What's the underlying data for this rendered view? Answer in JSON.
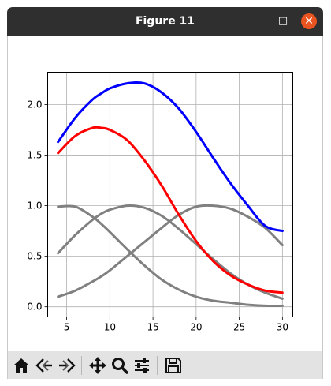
{
  "window": {
    "title": "Figure 11",
    "minimize_glyph": "–",
    "maximize_glyph": "□",
    "close_glyph": "✕",
    "close_color": "#e95420"
  },
  "toolbar": {
    "buttons": [
      {
        "name": "home",
        "icon": "home-icon"
      },
      {
        "name": "back",
        "icon": "back-arrow-icon"
      },
      {
        "name": "forward",
        "icon": "forward-arrow-icon"
      },
      {
        "name": "pan",
        "icon": "move-icon"
      },
      {
        "name": "zoom",
        "icon": "magnifier-icon"
      },
      {
        "name": "configure",
        "icon": "sliders-icon"
      },
      {
        "name": "save",
        "icon": "floppy-disk-icon"
      }
    ]
  },
  "chart_data": {
    "type": "line",
    "title": "",
    "xlabel": "",
    "ylabel": "",
    "xlim": [
      2.8,
      31.2
    ],
    "ylim": [
      -0.1,
      2.32
    ],
    "xticks": [
      5,
      10,
      15,
      20,
      25,
      30
    ],
    "yticks": [
      0.0,
      0.5,
      1.0,
      1.5,
      2.0
    ],
    "xtick_labels": [
      "5",
      "10",
      "15",
      "20",
      "25",
      "30"
    ],
    "ytick_labels": [
      "0.0",
      "0.5",
      "1.0",
      "1.5",
      "2.0"
    ],
    "grid": true,
    "legend": "none",
    "x": [
      4,
      6,
      8,
      9,
      10,
      12,
      14,
      16,
      18,
      20,
      22,
      24,
      26,
      28,
      30
    ],
    "series": [
      {
        "color": "#0000ff",
        "values": [
          1.63,
          1.87,
          2.05,
          2.11,
          2.16,
          2.21,
          2.21,
          2.12,
          1.96,
          1.73,
          1.47,
          1.22,
          1.0,
          0.8,
          0.75
        ]
      },
      {
        "color": "#ff0000",
        "values": [
          1.52,
          1.69,
          1.77,
          1.77,
          1.75,
          1.65,
          1.45,
          1.2,
          0.91,
          0.65,
          0.45,
          0.31,
          0.22,
          0.16,
          0.14
        ]
      },
      {
        "color": "#808080",
        "values": [
          0.99,
          0.99,
          0.89,
          0.82,
          0.74,
          0.57,
          0.41,
          0.27,
          0.17,
          0.1,
          0.06,
          0.04,
          0.02,
          0.01,
          0.01
        ]
      },
      {
        "color": "#808080",
        "values": [
          0.53,
          0.71,
          0.86,
          0.92,
          0.96,
          1.0,
          0.98,
          0.9,
          0.77,
          0.62,
          0.47,
          0.33,
          0.22,
          0.14,
          0.08
        ]
      },
      {
        "color": "#808080",
        "values": [
          0.1,
          0.16,
          0.25,
          0.3,
          0.36,
          0.5,
          0.64,
          0.78,
          0.91,
          0.99,
          1.0,
          0.97,
          0.89,
          0.78,
          0.61
        ]
      }
    ]
  }
}
